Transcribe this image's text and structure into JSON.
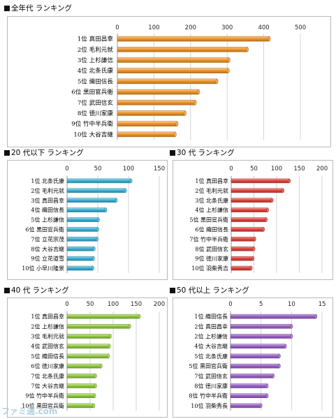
{
  "chart_data": [
    {
      "id": "all",
      "type": "bar",
      "orientation": "horizontal",
      "title": "全年代 ランキング",
      "categories": [
        "1位 真田昌幸",
        "2位 毛利元就",
        "3位 上杉謙信",
        "4位 北条氏康",
        "5位 織田信長",
        "6位 黒田官兵衛",
        "7位 武田信玄",
        "8位 徳川家康",
        "9位 竹中半兵衛",
        "10位 大谷吉継"
      ],
      "values": [
        415,
        355,
        305,
        303,
        272,
        222,
        213,
        185,
        163,
        158
      ],
      "xlim": [
        0,
        500
      ],
      "ticks": [
        0,
        100,
        200,
        300,
        400,
        500
      ],
      "color": "#f0962a",
      "grid": true,
      "legend": "none"
    },
    {
      "id": "u20",
      "type": "bar",
      "orientation": "horizontal",
      "title": "20 代以下 ランキング",
      "categories": [
        "1位 北条氏康",
        "2位 毛利元就",
        "3位 真田昌幸",
        "4位 織田信長",
        "5位 上杉謙信",
        "6位 黒田官兵衛",
        "7位 立花宗茂",
        "8位 大谷吉継",
        "9位 立花道雪",
        "10位 小早川隆景"
      ],
      "values": [
        104,
        95,
        80,
        63,
        51,
        50,
        49,
        44,
        43,
        42
      ],
      "xlim": [
        0,
        150
      ],
      "ticks": [
        0,
        50,
        100,
        150
      ],
      "color": "#3bb2d6",
      "grid": true,
      "legend": "none"
    },
    {
      "id": "s30",
      "type": "bar",
      "orientation": "horizontal",
      "title": "30 代 ランキング",
      "categories": [
        "1位 真田昌幸",
        "2位 毛利元就",
        "3位 北条氏康",
        "4位 上杉謙信",
        "5位 黒田官兵衛",
        "6位 織田信長",
        "7位 竹中半兵衛",
        "8位 武田信玄",
        "9位 徳川家康",
        "10位 羽柴秀吉"
      ],
      "values": [
        128,
        114,
        90,
        80,
        77,
        71,
        52,
        50,
        48,
        44
      ],
      "xlim": [
        0,
        200
      ],
      "ticks": [
        0,
        50,
        100,
        150,
        200
      ],
      "color": "#e0443c",
      "grid": true,
      "legend": "none"
    },
    {
      "id": "s40",
      "type": "bar",
      "orientation": "horizontal",
      "title": "40 代 ランキング",
      "categories": [
        "1位 真田昌幸",
        "2位 上杉謙信",
        "3位 毛利元就",
        "4位 武田信玄",
        "5位 織田信長",
        "6位 徳川家康",
        "7位 北条氏康",
        "7位 大谷吉継",
        "9位 竹中半兵衛",
        "10位 黒田官兵衛"
      ],
      "values": [
        157,
        136,
        94,
        92,
        90,
        74,
        62,
        62,
        60,
        58
      ],
      "xlim": [
        0,
        200
      ],
      "ticks": [
        0,
        50,
        100,
        150,
        200
      ],
      "color": "#92cc3e",
      "grid": true,
      "legend": "none"
    },
    {
      "id": "s50",
      "type": "bar",
      "orientation": "horizontal",
      "title": "50 代以上 ランキング",
      "categories": [
        "1位 織田信長",
        "2位 真田昌幸",
        "2位 上杉謙信",
        "4位 大谷吉継",
        "5位 北条氏康",
        "5位 黒田官兵衛",
        "7位 武田信玄",
        "8位 徳川家康",
        "8位 竹中半兵衛",
        "10位 羽柴秀長"
      ],
      "values": [
        14,
        10,
        10,
        9,
        8,
        8,
        7,
        6,
        6,
        5
      ],
      "xlim": [
        0,
        15
      ],
      "ticks": [
        0,
        5,
        10,
        15
      ],
      "color": "#9a63c8",
      "grid": true,
      "legend": "none"
    }
  ],
  "watermark": "ファミ通.com"
}
